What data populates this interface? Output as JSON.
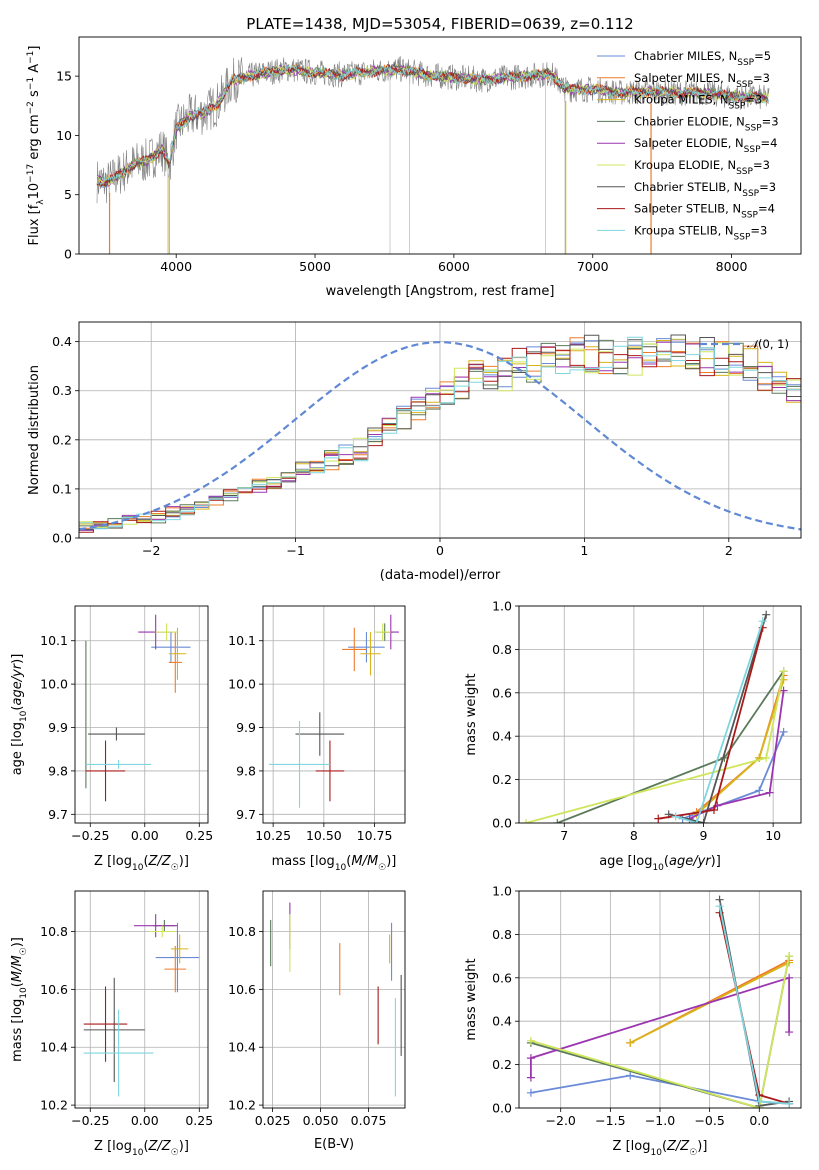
{
  "figure": {
    "colors": {
      "Chabrier MILES": "#6a8bd8",
      "Salpeter MILES": "#ee7d2a",
      "Kroupa MILES": "#d8b41a",
      "Chabrier ELODIE": "#5a7a5a",
      "Salpeter ELODIE": "#9b35b0",
      "Kroupa ELODIE": "#cfe55c",
      "Chabrier STELIB": "#555555",
      "Salpeter STELIB": "#aa1a1a",
      "Kroupa STELIB": "#7fd6df",
      "observed": "#808080",
      "gaussian": "#5f88d5"
    }
  },
  "chart_data": [
    {
      "id": "spectrum",
      "type": "line",
      "title": "PLATE=1438, MJD=53054, FIBERID=0639, z=0.112",
      "xlabel": "wavelength [Angstrom, rest frame]",
      "ylabel": "Flux [f_λ 10^-17 erg cm^-2 s^-1 A^-1]",
      "xlim": [
        3300,
        8500
      ],
      "ylim": [
        0,
        18.3
      ],
      "xticks": [
        4000,
        5000,
        6000,
        7000,
        8000
      ],
      "yticks": [
        0,
        5,
        10,
        15
      ],
      "legend_position": "upper-right",
      "legend": [
        "Chabrier MILES, N_SSP=5",
        "Salpeter MILES, N_SSP=3",
        "Kroupa MILES, N_SSP=3",
        "Chabrier ELODIE, N_SSP=3",
        "Salpeter ELODIE, N_SSP=4",
        "Kroupa ELODIE, N_SSP=3",
        "Chabrier STELIB, N_SSP=3",
        "Salpeter STELIB, N_SSP=4",
        "Kroupa STELIB, N_SSP=3"
      ],
      "continuum": {
        "x": [
          3430,
          3500,
          3600,
          3700,
          3800,
          3900,
          3950,
          4000,
          4100,
          4200,
          4300,
          4400,
          4500,
          4600,
          4800,
          5000,
          5200,
          5400,
          5600,
          5800,
          6000,
          6200,
          6400,
          6500,
          6600,
          6700,
          6800,
          7000,
          7200,
          7400,
          7600,
          7800,
          8000,
          8200,
          8270
        ],
        "y": [
          6.2,
          6.0,
          6.8,
          7.6,
          7.9,
          8.9,
          7.5,
          10.6,
          11.6,
          11.9,
          12.7,
          14.6,
          14.9,
          15.2,
          15.6,
          15.3,
          15.1,
          15.4,
          15.6,
          15.1,
          14.9,
          14.7,
          14.9,
          15.0,
          15.1,
          15.2,
          13.9,
          13.9,
          13.6,
          13.7,
          13.6,
          13.6,
          13.3,
          13.2,
          13.1
        ]
      },
      "spikes_x": [
        3520,
        3940,
        5540,
        5680,
        6660,
        6800,
        7420
      ],
      "noise_amplitude": 1.6
    },
    {
      "id": "residuals",
      "type": "histogram",
      "xlabel": "(data-model)/error",
      "ylabel": "Normed distribution",
      "xlim": [
        -2.5,
        2.5
      ],
      "ylim": [
        0,
        0.44
      ],
      "xticks": [
        -2,
        -1,
        0,
        1,
        2
      ],
      "yticks": [
        0.0,
        0.1,
        0.2,
        0.3,
        0.4
      ],
      "grid": true,
      "legend": [
        "𝒩(0,1)"
      ],
      "legend_position": "upper-right",
      "bin_width": 0.1,
      "bin_start": -2.5,
      "base_profile": [
        0.022,
        0.026,
        0.03,
        0.034,
        0.038,
        0.043,
        0.05,
        0.058,
        0.066,
        0.075,
        0.086,
        0.097,
        0.106,
        0.115,
        0.126,
        0.137,
        0.148,
        0.158,
        0.168,
        0.18,
        0.205,
        0.225,
        0.247,
        0.266,
        0.285,
        0.3,
        0.313,
        0.324,
        0.333,
        0.341,
        0.348,
        0.353,
        0.358,
        0.363,
        0.367,
        0.37,
        0.372,
        0.374,
        0.375,
        0.376,
        0.376,
        0.375,
        0.374,
        0.372,
        0.368,
        0.36,
        0.35,
        0.335,
        0.32,
        0.305,
        0.29,
        0.275,
        0.26,
        0.243,
        0.225,
        0.205,
        0.185,
        0.165,
        0.148,
        0.133,
        0.12,
        0.108,
        0.098,
        0.09,
        0.082,
        0.076,
        0.07,
        0.066,
        0.061,
        0.057,
        0.053,
        0.05,
        0.047,
        0.044,
        0.042,
        0.04,
        0.038,
        0.036,
        0.034,
        0.032,
        0.03,
        0.029,
        0.028,
        0.027,
        0.026,
        0.025,
        0.024,
        0.023,
        0.022,
        0.021,
        0.02,
        0.02,
        0.019,
        0.018,
        0.018,
        0.017,
        0.017,
        0.016,
        0.016,
        0.015
      ]
    },
    {
      "id": "age-vs-Z",
      "type": "errorbar",
      "xlabel": "Z [log10(Z/Z☉)]",
      "ylabel": "age [log10(age/yr)]",
      "xlim": [
        -0.32,
        0.29
      ],
      "ylim": [
        9.68,
        10.18
      ],
      "xticks": [
        -0.25,
        0.0,
        0.25
      ],
      "xticklabels": [
        "−0.25",
        "0.00",
        "0.25"
      ],
      "yticks": [
        9.7,
        9.8,
        9.9,
        10.0,
        10.1
      ],
      "grid": true,
      "points": [
        {
          "model": "Chabrier MILES",
          "x": 0.12,
          "y": 10.085,
          "xerr": 0.09,
          "yerr": 0.035
        },
        {
          "model": "Salpeter MILES",
          "x": 0.14,
          "y": 10.05,
          "xerr": 0.03,
          "yerr": 0.07
        },
        {
          "model": "Kroupa MILES",
          "x": 0.15,
          "y": 10.07,
          "xerr": 0.04,
          "yerr": 0.06
        },
        {
          "model": "Chabrier ELODIE",
          "x": -0.27,
          "y": 9.93,
          "xerr": 0.0,
          "yerr": 0.17
        },
        {
          "model": "Salpeter ELODIE",
          "x": 0.05,
          "y": 10.12,
          "xerr": 0.08,
          "yerr": 0.04
        },
        {
          "model": "Kroupa ELODIE",
          "x": 0.1,
          "y": 10.12,
          "xerr": 0.05,
          "yerr": 0.02
        },
        {
          "model": "Chabrier STELIB",
          "x": -0.13,
          "y": 9.885,
          "xerr": 0.13,
          "yerr": 0.015
        },
        {
          "model": "Salpeter STELIB",
          "x": -0.18,
          "y": 9.8,
          "xerr": 0.09,
          "yerr": 0.07
        },
        {
          "model": "Kroupa STELIB",
          "x": -0.12,
          "y": 9.815,
          "xerr": 0.15,
          "yerr": 0.01
        }
      ]
    },
    {
      "id": "age-vs-mass",
      "type": "errorbar",
      "xlabel": "mass [log10(M/M☉)]",
      "ylabel": "",
      "xlim": [
        10.2,
        10.9
      ],
      "ylim": [
        9.68,
        10.18
      ],
      "xticks": [
        10.25,
        10.5,
        10.75
      ],
      "yticks": [
        9.7,
        9.8,
        9.9,
        10.0,
        10.1
      ],
      "grid": true,
      "points": [
        {
          "model": "Chabrier MILES",
          "x": 10.71,
          "y": 10.085,
          "xerr": 0.09,
          "yerr": 0.035
        },
        {
          "model": "Salpeter MILES",
          "x": 10.65,
          "y": 10.08,
          "xerr": 0.06,
          "yerr": 0.05
        },
        {
          "model": "Kroupa MILES",
          "x": 10.73,
          "y": 10.07,
          "xerr": 0.05,
          "yerr": 0.05
        },
        {
          "model": "Chabrier ELODIE",
          "x": 10.8,
          "y": 10.12,
          "xerr": 0.04,
          "yerr": 0.02
        },
        {
          "model": "Salpeter ELODIE",
          "x": 10.83,
          "y": 10.12,
          "xerr": 0.04,
          "yerr": 0.04
        },
        {
          "model": "Kroupa ELODIE",
          "x": 10.79,
          "y": 10.12,
          "xerr": 0.04,
          "yerr": 0.02
        },
        {
          "model": "Chabrier STELIB",
          "x": 10.48,
          "y": 9.885,
          "xerr": 0.12,
          "yerr": 0.05
        },
        {
          "model": "Salpeter STELIB",
          "x": 10.53,
          "y": 9.8,
          "xerr": 0.07,
          "yerr": 0.07
        },
        {
          "model": "Kroupa STELIB",
          "x": 10.38,
          "y": 9.815,
          "xerr": 0.15,
          "yerr": 0.1
        }
      ]
    },
    {
      "id": "weight-vs-age",
      "type": "line",
      "xlabel": "age [log10(age/yr)]",
      "ylabel": "mass weight",
      "xlim": [
        6.35,
        10.4
      ],
      "ylim": [
        0,
        1
      ],
      "xticks": [
        7,
        8,
        9,
        10
      ],
      "yticks": [
        0.0,
        0.2,
        0.4,
        0.6,
        0.8,
        1.0
      ],
      "grid": true,
      "series": [
        {
          "model": "Chabrier MILES",
          "x": [
            8.7,
            9.8,
            10.15
          ],
          "y": [
            0.02,
            0.15,
            0.42
          ]
        },
        {
          "model": "Salpeter MILES",
          "x": [
            8.9,
            9.8,
            10.15
          ],
          "y": [
            0.05,
            0.3,
            0.68
          ]
        },
        {
          "model": "Kroupa MILES",
          "x": [
            8.9,
            9.8,
            10.15
          ],
          "y": [
            0.04,
            0.3,
            0.66
          ]
        },
        {
          "model": "Chabrier ELODIE",
          "x": [
            6.9,
            9.3,
            10.15
          ],
          "y": [
            0.0,
            0.3,
            0.7
          ]
        },
        {
          "model": "Salpeter ELODIE",
          "x": [
            8.8,
            9.2,
            9.95,
            10.15
          ],
          "y": [
            0.02,
            0.08,
            0.14,
            0.61
          ]
        },
        {
          "model": "Kroupa ELODIE",
          "x": [
            6.45,
            9.9,
            10.15
          ],
          "y": [
            0.0,
            0.3,
            0.7
          ]
        },
        {
          "model": "Chabrier STELIB",
          "x": [
            8.5,
            9.0,
            9.9
          ],
          "y": [
            0.04,
            0.0,
            0.96
          ]
        },
        {
          "model": "Salpeter STELIB",
          "x": [
            8.35,
            9.15,
            9.85
          ],
          "y": [
            0.02,
            0.06,
            0.9
          ]
        },
        {
          "model": "Kroupa STELIB",
          "x": [
            8.6,
            8.9,
            9.85
          ],
          "y": [
            0.03,
            0.0,
            0.93
          ]
        }
      ]
    },
    {
      "id": "mass-vs-Z",
      "type": "errorbar",
      "xlabel": "Z [log10(Z/Z☉)]",
      "ylabel": "mass [log10(M/M☉)]",
      "xlim": [
        -0.32,
        0.29
      ],
      "ylim": [
        10.19,
        10.94
      ],
      "xticks": [
        -0.25,
        0.0,
        0.25
      ],
      "xticklabels": [
        "−0.25",
        "0.00",
        "0.25"
      ],
      "yticks": [
        10.2,
        10.4,
        10.6,
        10.8
      ],
      "grid": true,
      "points": [
        {
          "model": "Chabrier MILES",
          "x": 0.15,
          "y": 10.71,
          "xerr": 0.1,
          "yerr": 0.12
        },
        {
          "model": "Salpeter MILES",
          "x": 0.14,
          "y": 10.67,
          "xerr": 0.05,
          "yerr": 0.08
        },
        {
          "model": "Kroupa MILES",
          "x": 0.16,
          "y": 10.74,
          "xerr": 0.04,
          "yerr": 0.05
        },
        {
          "model": "Chabrier ELODIE",
          "x": 0.09,
          "y": 10.82,
          "xerr": 0.05,
          "yerr": 0.02
        },
        {
          "model": "Salpeter ELODIE",
          "x": 0.05,
          "y": 10.82,
          "xerr": 0.1,
          "yerr": 0.04
        },
        {
          "model": "Kroupa ELODIE",
          "x": 0.08,
          "y": 10.8,
          "xerr": 0.06,
          "yerr": 0.02
        },
        {
          "model": "Chabrier STELIB",
          "x": -0.14,
          "y": 10.46,
          "xerr": 0.14,
          "yerr": 0.18
        },
        {
          "model": "Salpeter STELIB",
          "x": -0.18,
          "y": 10.48,
          "xerr": 0.1,
          "yerr": 0.13
        },
        {
          "model": "Kroupa STELIB",
          "x": -0.12,
          "y": 10.38,
          "xerr": 0.16,
          "yerr": 0.15
        }
      ]
    },
    {
      "id": "mass-vs-EBV",
      "type": "errorbar",
      "xlabel": "E(B-V)",
      "ylabel": "",
      "xlim": [
        0.02,
        0.094
      ],
      "ylim": [
        10.19,
        10.94
      ],
      "xticks": [
        0.025,
        0.05,
        0.075
      ],
      "yticks": [
        10.2,
        10.4,
        10.6,
        10.8
      ],
      "grid": true,
      "points": [
        {
          "model": "Chabrier MILES",
          "x": 0.087,
          "y": 10.73,
          "xerr": 0,
          "yerr": 0.1
        },
        {
          "model": "Salpeter MILES",
          "x": 0.06,
          "y": 10.67,
          "xerr": 0,
          "yerr": 0.09
        },
        {
          "model": "Kroupa MILES",
          "x": 0.086,
          "y": 10.74,
          "xerr": 0,
          "yerr": 0.05
        },
        {
          "model": "Chabrier ELODIE",
          "x": 0.024,
          "y": 10.76,
          "xerr": 0,
          "yerr": 0.08
        },
        {
          "model": "Salpeter ELODIE",
          "x": 0.034,
          "y": 10.82,
          "xerr": 0,
          "yerr": 0.08
        },
        {
          "model": "Kroupa ELODIE",
          "x": 0.034,
          "y": 10.76,
          "xerr": 0,
          "yerr": 0.1
        },
        {
          "model": "Chabrier STELIB",
          "x": 0.092,
          "y": 10.51,
          "xerr": 0,
          "yerr": 0.14
        },
        {
          "model": "Salpeter STELIB",
          "x": 0.08,
          "y": 10.51,
          "xerr": 0,
          "yerr": 0.1
        },
        {
          "model": "Kroupa STELIB",
          "x": 0.089,
          "y": 10.4,
          "xerr": 0,
          "yerr": 0.17
        }
      ]
    },
    {
      "id": "weight-vs-Z",
      "type": "line",
      "xlabel": "Z [log10(Z/Z☉)]",
      "ylabel": "mass weight",
      "xlim": [
        -2.42,
        0.42
      ],
      "ylim": [
        0,
        1
      ],
      "xticks": [
        -2.0,
        -1.5,
        -1.0,
        -0.5,
        0.0
      ],
      "xticklabels": [
        "−2.0",
        "−1.5",
        "−1.0",
        "−0.5",
        "0.0"
      ],
      "yticks": [
        0.0,
        0.2,
        0.4,
        0.6,
        0.8,
        1.0
      ],
      "grid": true,
      "series": [
        {
          "model": "Chabrier MILES",
          "x": [
            -2.3,
            -1.3,
            0.0,
            0.3
          ],
          "y": [
            0.07,
            0.15,
            0.03,
            0.02
          ]
        },
        {
          "model": "Salpeter MILES",
          "x": [
            -1.3,
            0.3
          ],
          "y": [
            0.3,
            0.68
          ]
        },
        {
          "model": "Kroupa MILES",
          "x": [
            -1.3,
            0.3
          ],
          "y": [
            0.3,
            0.67
          ]
        },
        {
          "model": "Chabrier ELODIE",
          "x": [
            -2.3,
            0.0,
            0.3
          ],
          "y": [
            0.3,
            0.0,
            0.7
          ]
        },
        {
          "model": "Salpeter ELODIE",
          "x": [
            -2.3,
            -2.3,
            0.3,
            0.3
          ],
          "y": [
            0.14,
            0.23,
            0.6,
            0.35
          ]
        },
        {
          "model": "Kroupa ELODIE",
          "x": [
            -2.3,
            0.0,
            0.3
          ],
          "y": [
            0.31,
            0.0,
            0.7
          ]
        },
        {
          "model": "Chabrier STELIB",
          "x": [
            -0.4,
            0.0,
            0.3
          ],
          "y": [
            0.96,
            0.01,
            0.03
          ]
        },
        {
          "model": "Salpeter STELIB",
          "x": [
            -0.4,
            0.0,
            0.3
          ],
          "y": [
            0.9,
            0.06,
            0.02
          ]
        },
        {
          "model": "Kroupa STELIB",
          "x": [
            -0.4,
            0.0,
            0.3
          ],
          "y": [
            0.93,
            0.03,
            0.02
          ]
        }
      ]
    }
  ]
}
